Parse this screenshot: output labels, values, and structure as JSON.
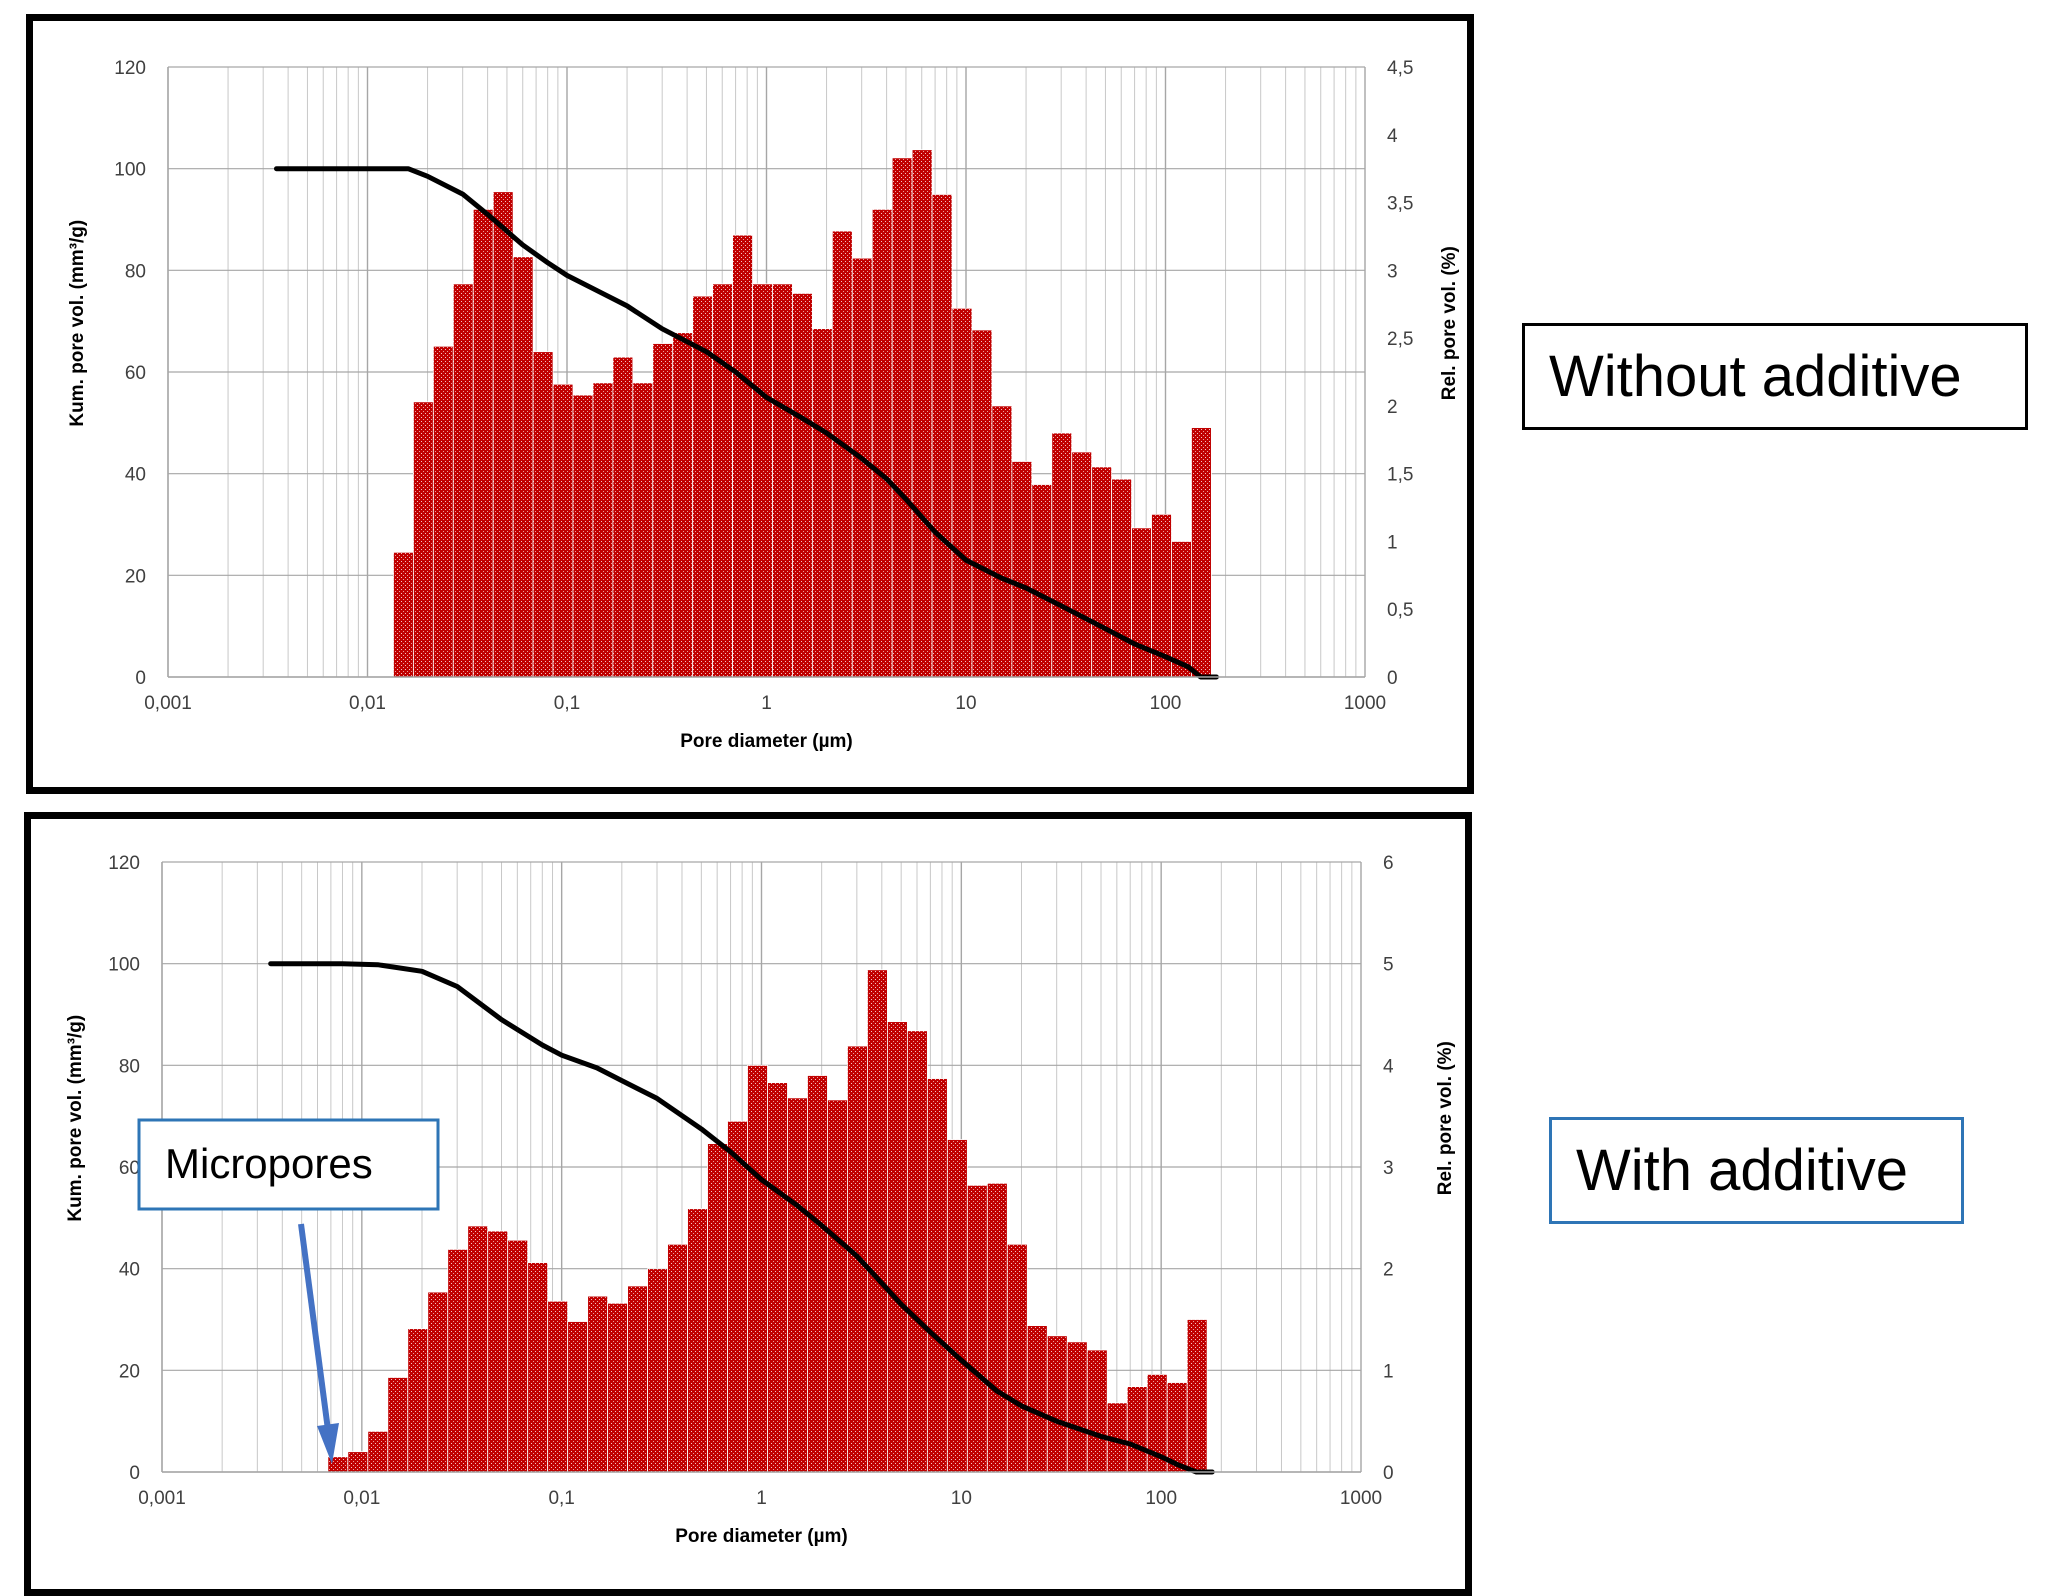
{
  "annotations": {
    "without_label": "Without  additive",
    "with_label": "With additive",
    "micropores_label": "Micropores",
    "micropores_box_color": "#2e75b6",
    "arrow_color": "#4472c4"
  },
  "chart_data": [
    {
      "type": "bar",
      "panel": "Without additive",
      "xlabel": "Pore diameter (µm)",
      "ylabel": "Kum. pore vol. (mm³/g)",
      "y2label": "Rel. pore vol. (%)",
      "xscale": "log",
      "xlim": [
        0.001,
        1000
      ],
      "x_ticks": [
        "0,001",
        "0,01",
        "0,1",
        "1",
        "10",
        "100",
        "1000"
      ],
      "ylim": [
        0,
        120
      ],
      "y_ticks": [
        "0",
        "20",
        "40",
        "60",
        "80",
        "100",
        "120"
      ],
      "y2lim": [
        0,
        4.5
      ],
      "y2_ticks": [
        "0",
        "0,5",
        "1",
        "1,5",
        "2",
        "2,5",
        "3",
        "3,5",
        "4",
        "4,5"
      ],
      "grid": true,
      "bar_color": "#c00000",
      "line_color": "#000000",
      "bars": {
        "name": "Rel. pore vol. (%)",
        "axis": "right",
        "log_x_start": -1.82,
        "log_x_step": 0.1,
        "values": [
          0.92,
          2.03,
          2.44,
          2.9,
          3.45,
          3.58,
          3.1,
          2.4,
          2.16,
          2.08,
          2.17,
          2.36,
          2.17,
          2.46,
          2.54,
          2.81,
          2.9,
          3.26,
          2.9,
          2.9,
          2.83,
          2.57,
          3.29,
          3.09,
          3.45,
          3.83,
          3.89,
          3.56,
          2.72,
          2.56,
          2.0,
          1.59,
          1.42,
          1.8,
          1.66,
          1.55,
          1.46,
          1.1,
          1.2,
          1.0,
          1.84
        ]
      },
      "line": {
        "name": "Kum. pore vol. (mm³/g)",
        "axis": "left",
        "x": [
          0.0035,
          0.008,
          0.016,
          0.02,
          0.03,
          0.04,
          0.06,
          0.08,
          0.1,
          0.15,
          0.2,
          0.3,
          0.5,
          0.7,
          1,
          1.5,
          2,
          3,
          4,
          5,
          7,
          10,
          15,
          20,
          30,
          50,
          70,
          100,
          130,
          150,
          180
        ],
        "y": [
          100,
          100,
          100,
          98.5,
          95,
          91,
          85,
          81.5,
          79,
          75.5,
          73,
          68.5,
          64,
          60,
          55,
          51,
          48,
          43,
          39,
          35,
          28.5,
          23,
          19.5,
          17.5,
          14,
          9.5,
          6.5,
          4,
          2,
          0,
          0
        ]
      }
    },
    {
      "type": "bar",
      "panel": "With additive",
      "xlabel": "Pore diameter (µm)",
      "ylabel": "Kum. pore vol. (mm³/g)",
      "y2label": "Rel. pore vol. (%)",
      "xscale": "log",
      "xlim": [
        0.001,
        1000
      ],
      "x_ticks": [
        "0,001",
        "0,01",
        "0,1",
        "1",
        "10",
        "100",
        "1000"
      ],
      "ylim": [
        0,
        120
      ],
      "y_ticks": [
        "0",
        "20",
        "40",
        "60",
        "80",
        "100",
        "120"
      ],
      "y2lim": [
        0,
        6
      ],
      "y2_ticks": [
        "0",
        "1",
        "2",
        "3",
        "4",
        "5",
        "6"
      ],
      "grid": true,
      "bar_color": "#c00000",
      "line_color": "#000000",
      "bars": {
        "name": "Rel. pore vol. (%)",
        "axis": "right",
        "log_x_start": -2.12,
        "log_x_step": 0.1,
        "values": [
          0.15,
          0.2,
          0.4,
          0.93,
          1.41,
          1.77,
          2.19,
          2.42,
          2.37,
          2.28,
          2.06,
          1.68,
          1.48,
          1.73,
          1.66,
          1.83,
          2.0,
          2.24,
          2.59,
          3.23,
          3.45,
          4.0,
          3.83,
          3.68,
          3.9,
          3.66,
          4.19,
          4.94,
          4.43,
          4.34,
          3.87,
          3.27,
          2.82,
          2.84,
          2.24,
          1.44,
          1.34,
          1.28,
          1.2,
          0.68,
          0.84,
          0.96,
          0.88,
          1.5
        ]
      },
      "line": {
        "name": "Kum. pore vol. (mm³/g)",
        "axis": "left",
        "x": [
          0.0035,
          0.008,
          0.012,
          0.02,
          0.03,
          0.05,
          0.08,
          0.1,
          0.15,
          0.2,
          0.3,
          0.5,
          0.7,
          1,
          1.5,
          2,
          3,
          5,
          7,
          10,
          15,
          20,
          30,
          50,
          70,
          100,
          120,
          150,
          180
        ],
        "y": [
          100,
          100,
          99.8,
          98.5,
          95.5,
          89,
          84,
          82,
          79.5,
          77,
          73.5,
          67.5,
          63,
          57.5,
          52.5,
          48.5,
          42.5,
          33,
          27.5,
          22,
          16,
          13,
          10,
          7,
          5.5,
          3,
          1.5,
          0,
          0
        ]
      }
    }
  ]
}
